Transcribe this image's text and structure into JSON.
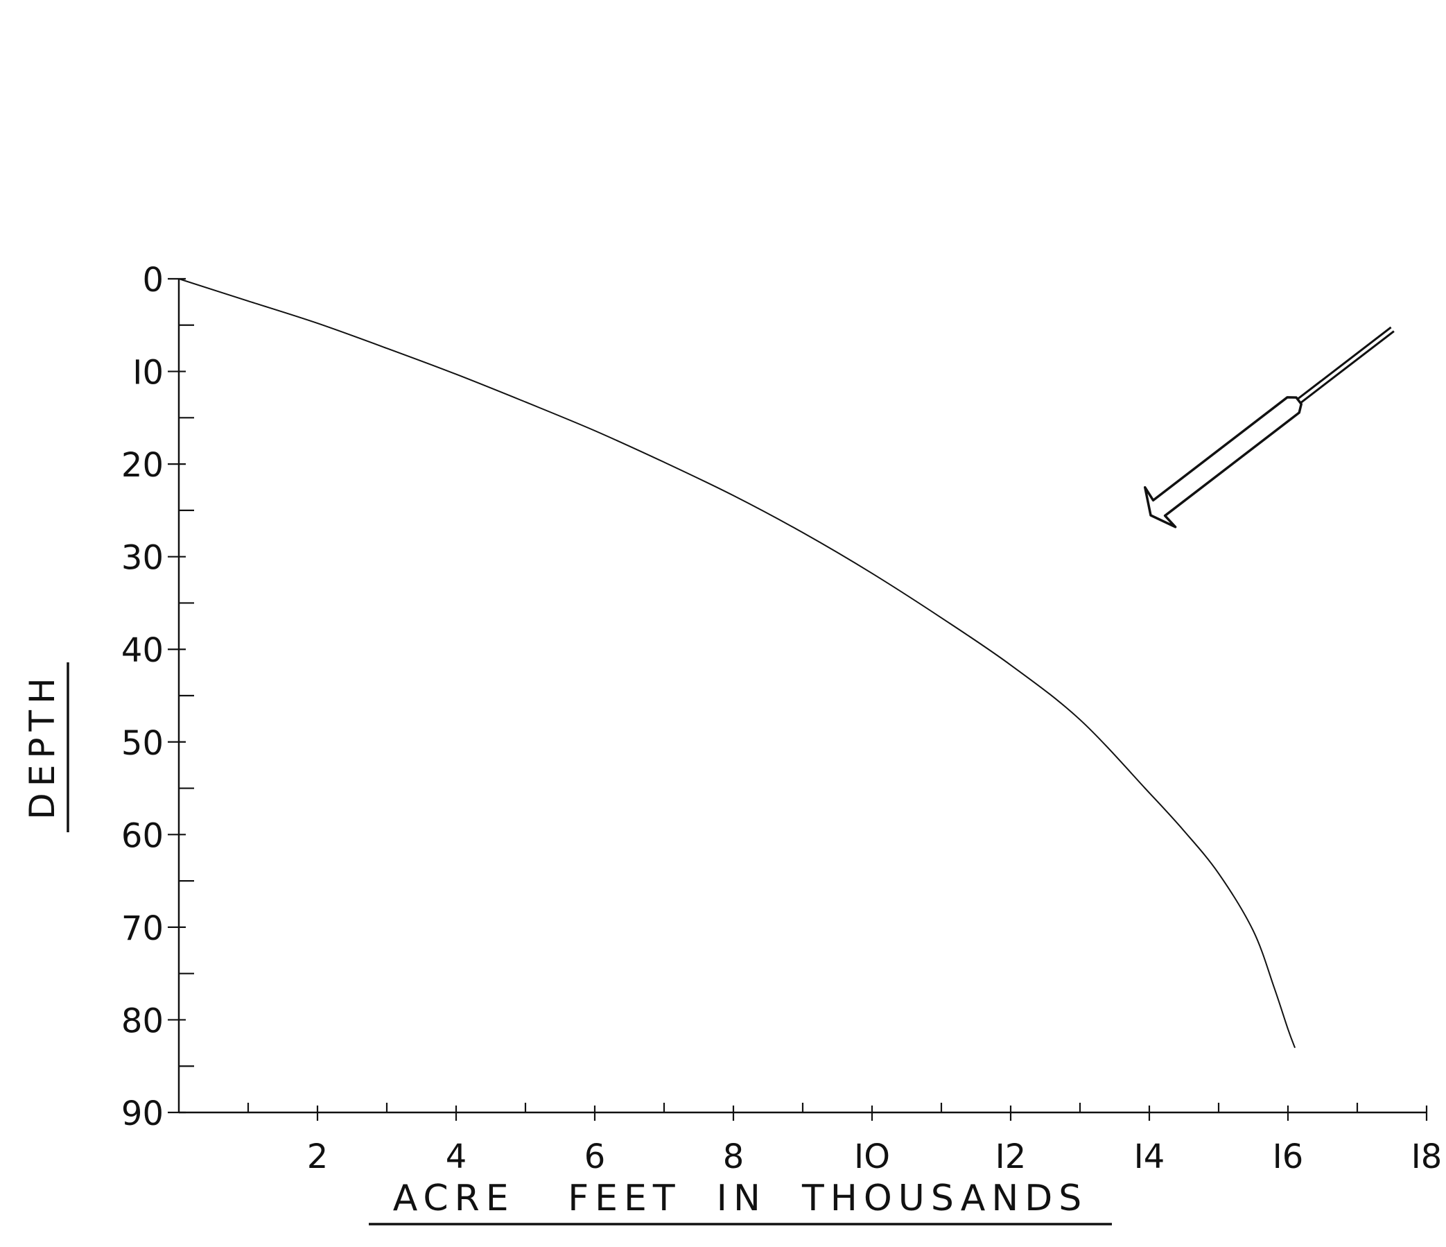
{
  "chart_data": {
    "type": "line",
    "title": "",
    "xlabel": "ACRE   FEET  IN  THOUSANDS",
    "ylabel": "DEPTH",
    "xlim": [
      0,
      18
    ],
    "ylim": [
      90,
      0
    ],
    "y_axis_inverted": true,
    "grid": false,
    "x_ticks": [
      2,
      4,
      6,
      8,
      10,
      12,
      14,
      16,
      18
    ],
    "x_minor_ticks": [
      1,
      3,
      5,
      7,
      9,
      11,
      13,
      15,
      17
    ],
    "x_tick_labels": [
      "2",
      "4",
      "6",
      "8",
      "IO",
      "I2",
      "I4",
      "I6",
      "I8"
    ],
    "y_ticks": [
      0,
      10,
      20,
      30,
      40,
      50,
      60,
      70,
      80,
      90
    ],
    "y_minor_ticks": [
      5,
      15,
      25,
      35,
      45,
      55,
      65,
      75,
      85
    ],
    "y_tick_labels": [
      "0",
      "I0",
      "20",
      "30",
      "40",
      "50",
      "60",
      "70",
      "80",
      "90"
    ],
    "series": [
      {
        "x": [
          0,
          1,
          2,
          3,
          4,
          5,
          6,
          7,
          8,
          9,
          10,
          11,
          12,
          13,
          14,
          14.5,
          15,
          15.5,
          15.8,
          16,
          16.1
        ],
        "y": [
          0,
          2.4,
          4.8,
          7.5,
          10.3,
          13.3,
          16.4,
          19.8,
          23.4,
          27.4,
          31.8,
          36.6,
          41.7,
          47.6,
          55.5,
          59.6,
          64.2,
          70.4,
          76.5,
          81,
          83
        ]
      }
    ],
    "annotations": [
      {
        "type": "arrow",
        "description": "diagonal arrow pointing toward lower left"
      }
    ]
  }
}
